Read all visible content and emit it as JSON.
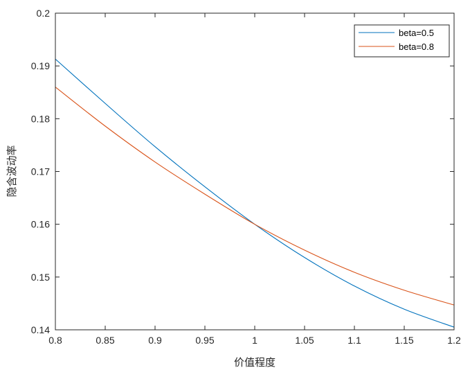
{
  "chart_data": {
    "type": "line",
    "title": "",
    "xlabel": "价值程度",
    "ylabel": "隐含波动率",
    "xlim": [
      0.8,
      1.2
    ],
    "ylim": [
      0.14,
      0.2
    ],
    "xticks": [
      "0.8",
      "0.85",
      "0.9",
      "0.95",
      "1",
      "1.05",
      "1.1",
      "1.15",
      "1.2"
    ],
    "yticks": [
      "0.14",
      "0.15",
      "0.16",
      "0.17",
      "0.18",
      "0.19",
      "0.2"
    ],
    "grid": false,
    "legend_position": "top-right",
    "x": [
      0.8,
      0.85,
      0.9,
      0.95,
      1.0,
      1.05,
      1.1,
      1.15,
      1.2
    ],
    "series": [
      {
        "name": "beta=0.5",
        "color": "#0072bd",
        "values": [
          0.1913,
          0.1829,
          0.1747,
          0.1671,
          0.16,
          0.1537,
          0.1483,
          0.1439,
          0.1405
        ]
      },
      {
        "name": "beta=0.8",
        "color": "#d95319",
        "values": [
          0.186,
          0.1786,
          0.1718,
          0.1657,
          0.16,
          0.1551,
          0.1509,
          0.1475,
          0.1447
        ]
      }
    ]
  }
}
